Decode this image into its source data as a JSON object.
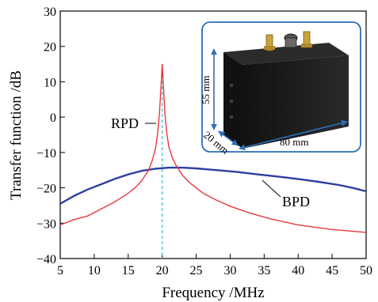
{
  "chart_data": {
    "type": "line",
    "title": "",
    "xlabel": "Frequency /MHz",
    "ylabel": "Transfer function /dB",
    "xlim": [
      5,
      50
    ],
    "ylim": [
      -40,
      30
    ],
    "x_ticks": [
      5,
      10,
      15,
      20,
      25,
      30,
      35,
      40,
      45,
      50
    ],
    "y_ticks": [
      30,
      20,
      10,
      0,
      -10,
      -20,
      -30,
      -40
    ],
    "y_tick_labels": [
      "30",
      "20",
      "10",
      "0",
      "−10",
      "−20",
      "−30",
      "−40"
    ],
    "grid": false,
    "series": [
      {
        "name": "RPD",
        "color": "#e8383d",
        "x": [
          5,
          7,
          9,
          11,
          13,
          15,
          16,
          17,
          18,
          18.5,
          19,
          19.3,
          19.6,
          19.8,
          20,
          20.2,
          20.4,
          20.7,
          21,
          21.5,
          22,
          23,
          24,
          26,
          28,
          30,
          33,
          36,
          40,
          45,
          50
        ],
        "values": [
          -30.5,
          -29,
          -28,
          -26,
          -24,
          -21.5,
          -20,
          -18,
          -15,
          -12.5,
          -9,
          -5,
          1,
          8,
          15,
          8,
          1,
          -5,
          -8.5,
          -11.5,
          -13.5,
          -16.5,
          -18.5,
          -21.5,
          -23.5,
          -25.2,
          -27.2,
          -28.8,
          -30.5,
          -31.8,
          -32.6
        ]
      },
      {
        "name": "BPD",
        "color": "#2e3e9e",
        "x": [
          5,
          7,
          9,
          11,
          13,
          15,
          17,
          19,
          21,
          23,
          25,
          28,
          31,
          34,
          37,
          40,
          43,
          46,
          48,
          50
        ],
        "values": [
          -24.5,
          -22.3,
          -20.5,
          -19,
          -17.5,
          -16.2,
          -15.2,
          -14.6,
          -14.3,
          -14.3,
          -14.5,
          -15,
          -15.5,
          -16.2,
          -16.8,
          -17.5,
          -18.3,
          -19.2,
          -20,
          -21
        ]
      }
    ],
    "vline": {
      "x": 20,
      "color": "#5ec8e0"
    },
    "annotations": {
      "rpd": "RPD",
      "bpd": "BPD"
    },
    "inset": {
      "height": "55 mm",
      "depth": "20 mm",
      "width": "80 mm"
    }
  }
}
